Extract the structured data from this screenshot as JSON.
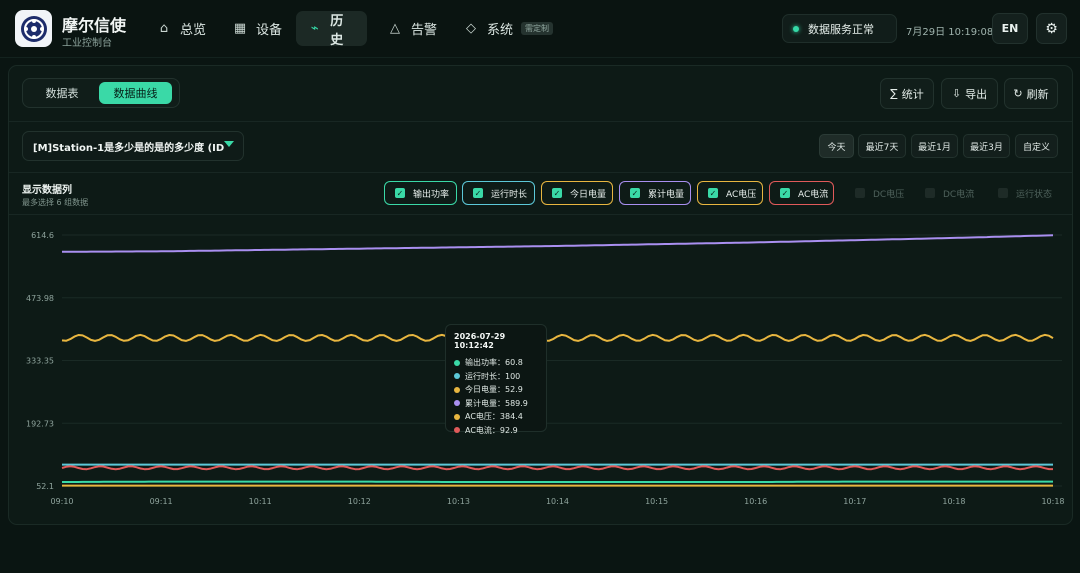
{
  "brand": {
    "title": "摩尔信使",
    "subtitle": "工业控制台"
  },
  "nav": [
    {
      "label": "总览",
      "icon": "home-icon"
    },
    {
      "label": "设备",
      "icon": "grid-icon"
    },
    {
      "label": "历史",
      "icon": "trend-icon",
      "active": true
    },
    {
      "label": "告警",
      "icon": "alert-triangle-icon"
    },
    {
      "label": "系统",
      "icon": "diamond-icon",
      "badge": "需定制"
    }
  ],
  "status": {
    "text": "数据服务正常",
    "color": "#35d9a7"
  },
  "datetime": "7月29日 10:19:08",
  "lang": "EN",
  "tabs": {
    "table": "数据表",
    "curve": "数据曲线"
  },
  "toolbar": {
    "stats": "统计",
    "export": "导出",
    "refresh": "刷新"
  },
  "station_select": {
    "value": "[M]Station-1是多少是的是的多少度 (ID"
  },
  "ranges": [
    "今天",
    "最近7天",
    "最近1月",
    "最近3月",
    "自定义"
  ],
  "series_panel": {
    "title": "显示数据列",
    "subtitle": "最多选择 6 组数据"
  },
  "series_chips": [
    {
      "label": "输出功率",
      "checked": true,
      "color": "#3ad9a7"
    },
    {
      "label": "运行时长",
      "checked": true,
      "color": "#5cc8d8"
    },
    {
      "label": "今日电量",
      "checked": true,
      "color": "#e8b640"
    },
    {
      "label": "累计电量",
      "checked": true,
      "color": "#a98ff0"
    },
    {
      "label": "AC电压",
      "checked": true,
      "color": "#e8b640"
    },
    {
      "label": "AC电流",
      "checked": true,
      "color": "#e05a5a"
    },
    {
      "label": "DC电压",
      "checked": false
    },
    {
      "label": "DC电流",
      "checked": false
    },
    {
      "label": "运行状态",
      "checked": false
    }
  ],
  "chart_data": {
    "type": "line",
    "x": [
      "09:10",
      "09:11",
      "10:11",
      "10:12",
      "10:13",
      "10:14",
      "10:15",
      "10:16",
      "10:17",
      "10:18",
      "10:18"
    ],
    "y_ticks": [
      "614.6",
      "473.98",
      "333.35",
      "192.73",
      "52.1"
    ],
    "ylim": [
      52.1,
      614.6
    ],
    "grid": true,
    "series": [
      {
        "name": "累计电量",
        "color": "#a98ff0",
        "values": [
          577,
          578,
          581,
          584,
          587,
          590,
          594,
          598,
          603,
          608,
          614
        ]
      },
      {
        "name": "AC电压",
        "color": "#e8b640",
        "values": [
          384,
          384,
          384,
          384,
          384,
          384,
          384,
          384,
          384,
          384,
          384
        ],
        "wavy": 3
      },
      {
        "name": "运行时长",
        "color": "#5cc8d8",
        "values": [
          100,
          100,
          100,
          100,
          100,
          100,
          100,
          100,
          100,
          100,
          100
        ]
      },
      {
        "name": "AC电流",
        "color": "#e05a5a",
        "values": [
          93,
          93,
          93,
          93,
          93,
          93,
          93,
          93,
          93,
          93,
          93
        ],
        "wavy": 1.5
      },
      {
        "name": "输出功率",
        "color": "#3ad9a7",
        "values": [
          61,
          62,
          62,
          62,
          61,
          61,
          61,
          61,
          62,
          62,
          62
        ]
      },
      {
        "name": "今日电量",
        "color": "#e8b640",
        "values": [
          53,
          53,
          53,
          53,
          53,
          53,
          53,
          53,
          53,
          53,
          53
        ]
      }
    ]
  },
  "tooltip": {
    "time": "2026-07-29 10:12:42",
    "rows": [
      {
        "text": "输出功率：60.8",
        "color": "#3ad9a7"
      },
      {
        "text": "运行时长：100",
        "color": "#5cc8d8"
      },
      {
        "text": "今日电量：52.9",
        "color": "#e8b640"
      },
      {
        "text": "累计电量：589.9",
        "color": "#a98ff0"
      },
      {
        "text": "AC电压：384.4",
        "color": "#e8b640"
      },
      {
        "text": "AC电流：92.9",
        "color": "#e05a5a"
      }
    ]
  }
}
